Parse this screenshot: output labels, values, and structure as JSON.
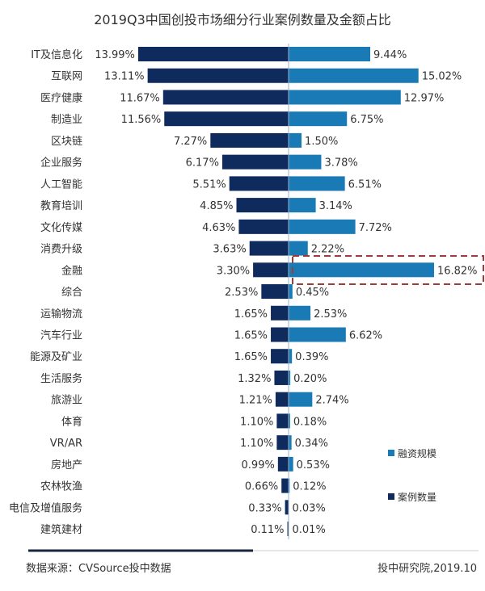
{
  "chart_data": {
    "type": "bar",
    "orientation": "horizontal-butterfly",
    "title": "2019Q3中国创投市场细分行业案例数量及金额占比",
    "categories": [
      "IT及信息化",
      "互联网",
      "医疗健康",
      "制造业",
      "区块链",
      "企业服务",
      "人工智能",
      "教育培训",
      "文化传媒",
      "消费升级",
      "金融",
      "综合",
      "运输物流",
      "汽车行业",
      "能源及矿业",
      "生活服务",
      "旅游业",
      "体育",
      "VR/AR",
      "房地产",
      "农林牧渔",
      "电信及增值服务",
      "建筑建材"
    ],
    "series": [
      {
        "name": "案例数量",
        "side": "left",
        "color": "#0f2a5c",
        "values": [
          13.99,
          13.11,
          11.67,
          11.56,
          7.27,
          6.17,
          5.51,
          4.85,
          4.63,
          3.63,
          3.3,
          2.53,
          1.65,
          1.65,
          1.65,
          1.32,
          1.21,
          1.1,
          1.1,
          0.99,
          0.66,
          0.33,
          0.11
        ]
      },
      {
        "name": "融资规模",
        "side": "right",
        "color": "#1a7ab5",
        "values": [
          9.44,
          15.02,
          12.97,
          6.75,
          1.5,
          3.78,
          6.51,
          3.14,
          7.72,
          2.22,
          16.82,
          0.45,
          2.53,
          6.62,
          0.39,
          0.2,
          2.74,
          0.18,
          0.34,
          0.53,
          0.12,
          0.03,
          0.01
        ]
      }
    ],
    "value_format": "percent, 2 decimals",
    "highlight": {
      "category": "金融",
      "series": "融资规模",
      "style": "dashed box",
      "color": "#a33a3a"
    },
    "legend": {
      "placement": "right",
      "entries": [
        "融资规模",
        "案例数量"
      ]
    },
    "grid": false
  },
  "footer": {
    "source": "数据来源：CVSource投中数据",
    "credit": "投中研究院,2019.10"
  }
}
